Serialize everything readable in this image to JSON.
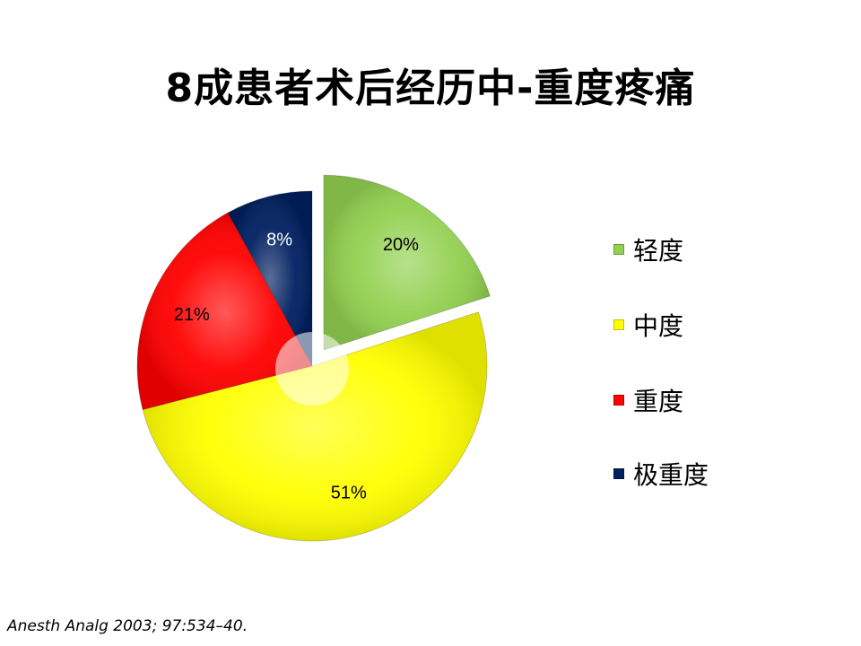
{
  "slide": {
    "title": "8成患者术后经历中-重度疼痛",
    "citation": "Anesth Analg 2003; 97:534–40."
  },
  "chart_data": {
    "type": "pie",
    "title": "",
    "categories": [
      "轻度",
      "中度",
      "重度",
      "极重度"
    ],
    "values": [
      20,
      51,
      21,
      8
    ],
    "data_labels": [
      "20%",
      "51%",
      "21%",
      "8%"
    ],
    "colors": [
      "#92D050",
      "#FFFF00",
      "#FF0000",
      "#002060"
    ],
    "legend_position": "right",
    "exploded_slice": "轻度"
  }
}
